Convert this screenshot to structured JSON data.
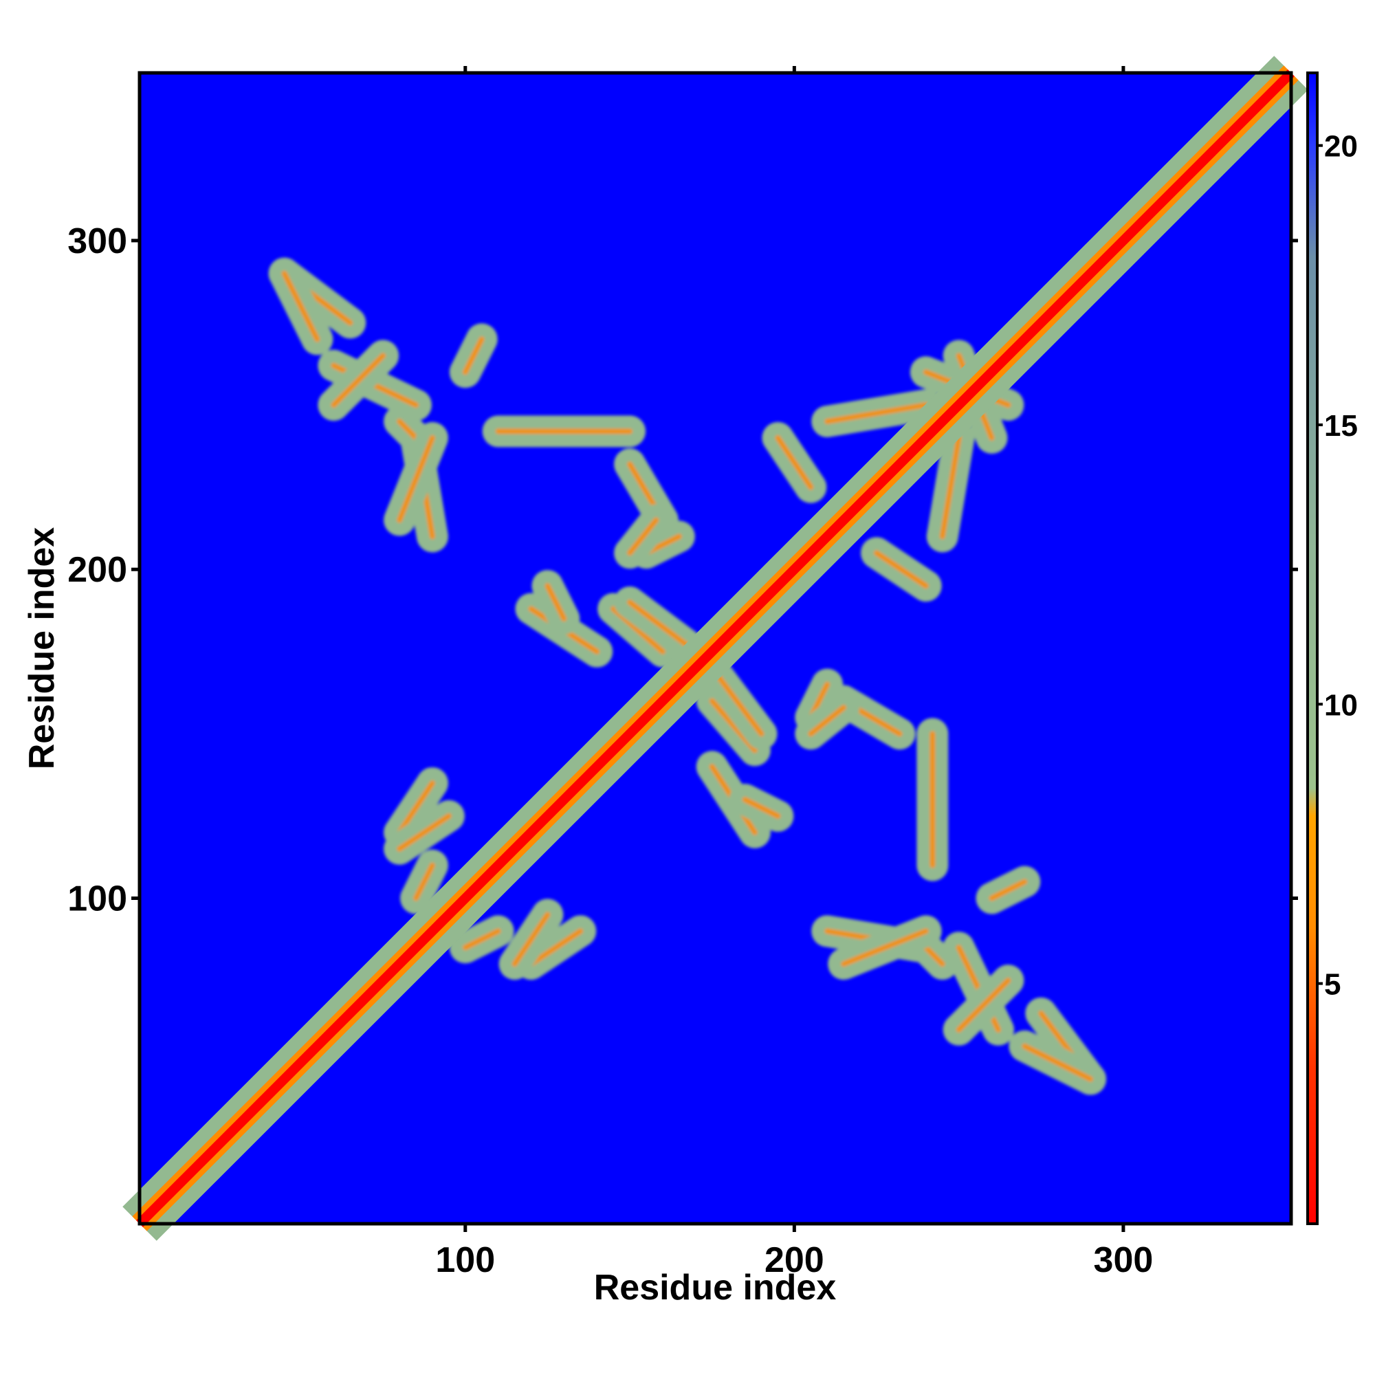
{
  "chart_data": {
    "type": "heatmap",
    "title": "",
    "xlabel": "Residue index",
    "ylabel": "Residue index",
    "xlim": [
      1,
      351
    ],
    "ylim": [
      1,
      351
    ],
    "x_ticks": [
      100,
      200,
      300
    ],
    "y_ticks": [
      100,
      200,
      300
    ],
    "colorbar": {
      "ticks": [
        5,
        10,
        15,
        20
      ],
      "range": [
        0.7,
        21.3
      ],
      "stops": [
        {
          "value": 0.7,
          "color": "#ff0000"
        },
        {
          "value": 3.5,
          "color": "#ff3300"
        },
        {
          "value": 6.0,
          "color": "#ff8c00"
        },
        {
          "value": 8.0,
          "color": "#ffa500"
        },
        {
          "value": 8.5,
          "color": "#9cc28c"
        },
        {
          "value": 13.0,
          "color": "#8fb596"
        },
        {
          "value": 18.0,
          "color": "#6b8fa8"
        },
        {
          "value": 20.0,
          "color": "#2a3cff"
        },
        {
          "value": 21.3,
          "color": "#0000ff"
        }
      ]
    },
    "background_value": 21,
    "background_color": "#0000ff",
    "diagonal_color": "#ff0000",
    "contact_color": "#93b990",
    "mid_color": "#ff8c00",
    "diagonal_halfwidth": 6,
    "contact_features": [
      {
        "x": 45,
        "y": 290,
        "x2": 65,
        "y2": 275
      },
      {
        "x": 60,
        "y": 262,
        "x2": 85,
        "y2": 250
      },
      {
        "x": 85,
        "y": 240,
        "x2": 90,
        "y2": 210
      },
      {
        "x": 110,
        "y": 242,
        "x2": 150,
        "y2": 242
      },
      {
        "x": 150,
        "y": 232,
        "x2": 160,
        "y2": 215
      },
      {
        "x": 120,
        "y": 188,
        "x2": 140,
        "y2": 175
      },
      {
        "x": 145,
        "y": 188,
        "x2": 160,
        "y2": 175
      },
      {
        "x": 155,
        "y": 205,
        "x2": 165,
        "y2": 210
      },
      {
        "x": 175,
        "y": 170,
        "x2": 190,
        "y2": 150
      },
      {
        "x": 185,
        "y": 130,
        "x2": 195,
        "y2": 125
      },
      {
        "x": 205,
        "y": 150,
        "x2": 215,
        "y2": 158
      },
      {
        "x": 210,
        "y": 245,
        "x2": 240,
        "y2": 250
      },
      {
        "x": 250,
        "y": 265,
        "x2": 260,
        "y2": 240
      },
      {
        "x": 225,
        "y": 205,
        "x2": 240,
        "y2": 195
      },
      {
        "x": 240,
        "y": 85,
        "x2": 245,
        "y2": 80
      },
      {
        "x": 250,
        "y": 60,
        "x2": 265,
        "y2": 75
      },
      {
        "x": 270,
        "y": 55,
        "x2": 290,
        "y2": 45
      },
      {
        "x": 120,
        "y": 80,
        "x2": 135,
        "y2": 90
      },
      {
        "x": 80,
        "y": 115,
        "x2": 95,
        "y2": 125
      },
      {
        "x": 100,
        "y": 85,
        "x2": 110,
        "y2": 90
      },
      {
        "x": 215,
        "y": 80,
        "x2": 240,
        "y2": 90
      },
      {
        "x": 260,
        "y": 100,
        "x2": 270,
        "y2": 105
      }
    ]
  }
}
